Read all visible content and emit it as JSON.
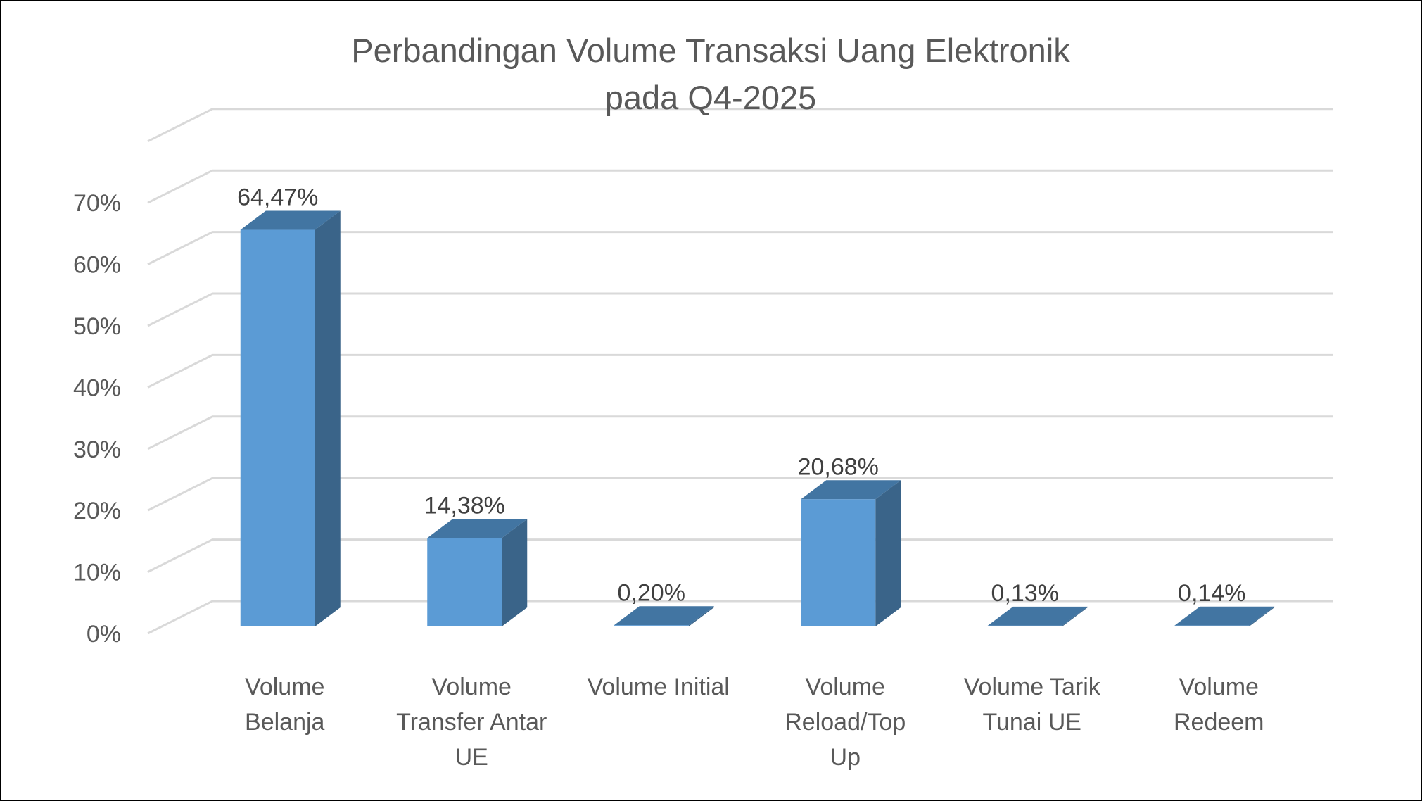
{
  "chart_data": {
    "type": "bar",
    "title": [
      "Perbandingan Volume Transaksi Uang Elektronik",
      "pada Q4-2025"
    ],
    "categories": [
      [
        "Volume",
        "Belanja"
      ],
      [
        "Volume",
        "Transfer Antar",
        "UE"
      ],
      [
        "Volume Initial"
      ],
      [
        "Volume",
        "Reload/Top",
        "Up"
      ],
      [
        "Volume Tarik",
        "Tunai UE"
      ],
      [
        "Volume",
        "Redeem"
      ]
    ],
    "values": [
      64.47,
      14.38,
      0.2,
      20.68,
      0.13,
      0.14
    ],
    "data_labels": [
      "64,47%",
      "14,38%",
      "0,20%",
      "20,68%",
      "0,13%",
      "0,14%"
    ],
    "ylim": [
      0,
      70
    ],
    "yticks": [
      "0%",
      "10%",
      "20%",
      "30%",
      "40%",
      "50%",
      "60%",
      "70%"
    ],
    "y_tick_step": 10,
    "grid": true,
    "three_d": true,
    "colors": {
      "bar_front": "#5b9bd5",
      "bar_side": "#3a6489",
      "bar_top": "#4275a2",
      "grid": "#d9d9d9",
      "text": "#595959"
    }
  }
}
